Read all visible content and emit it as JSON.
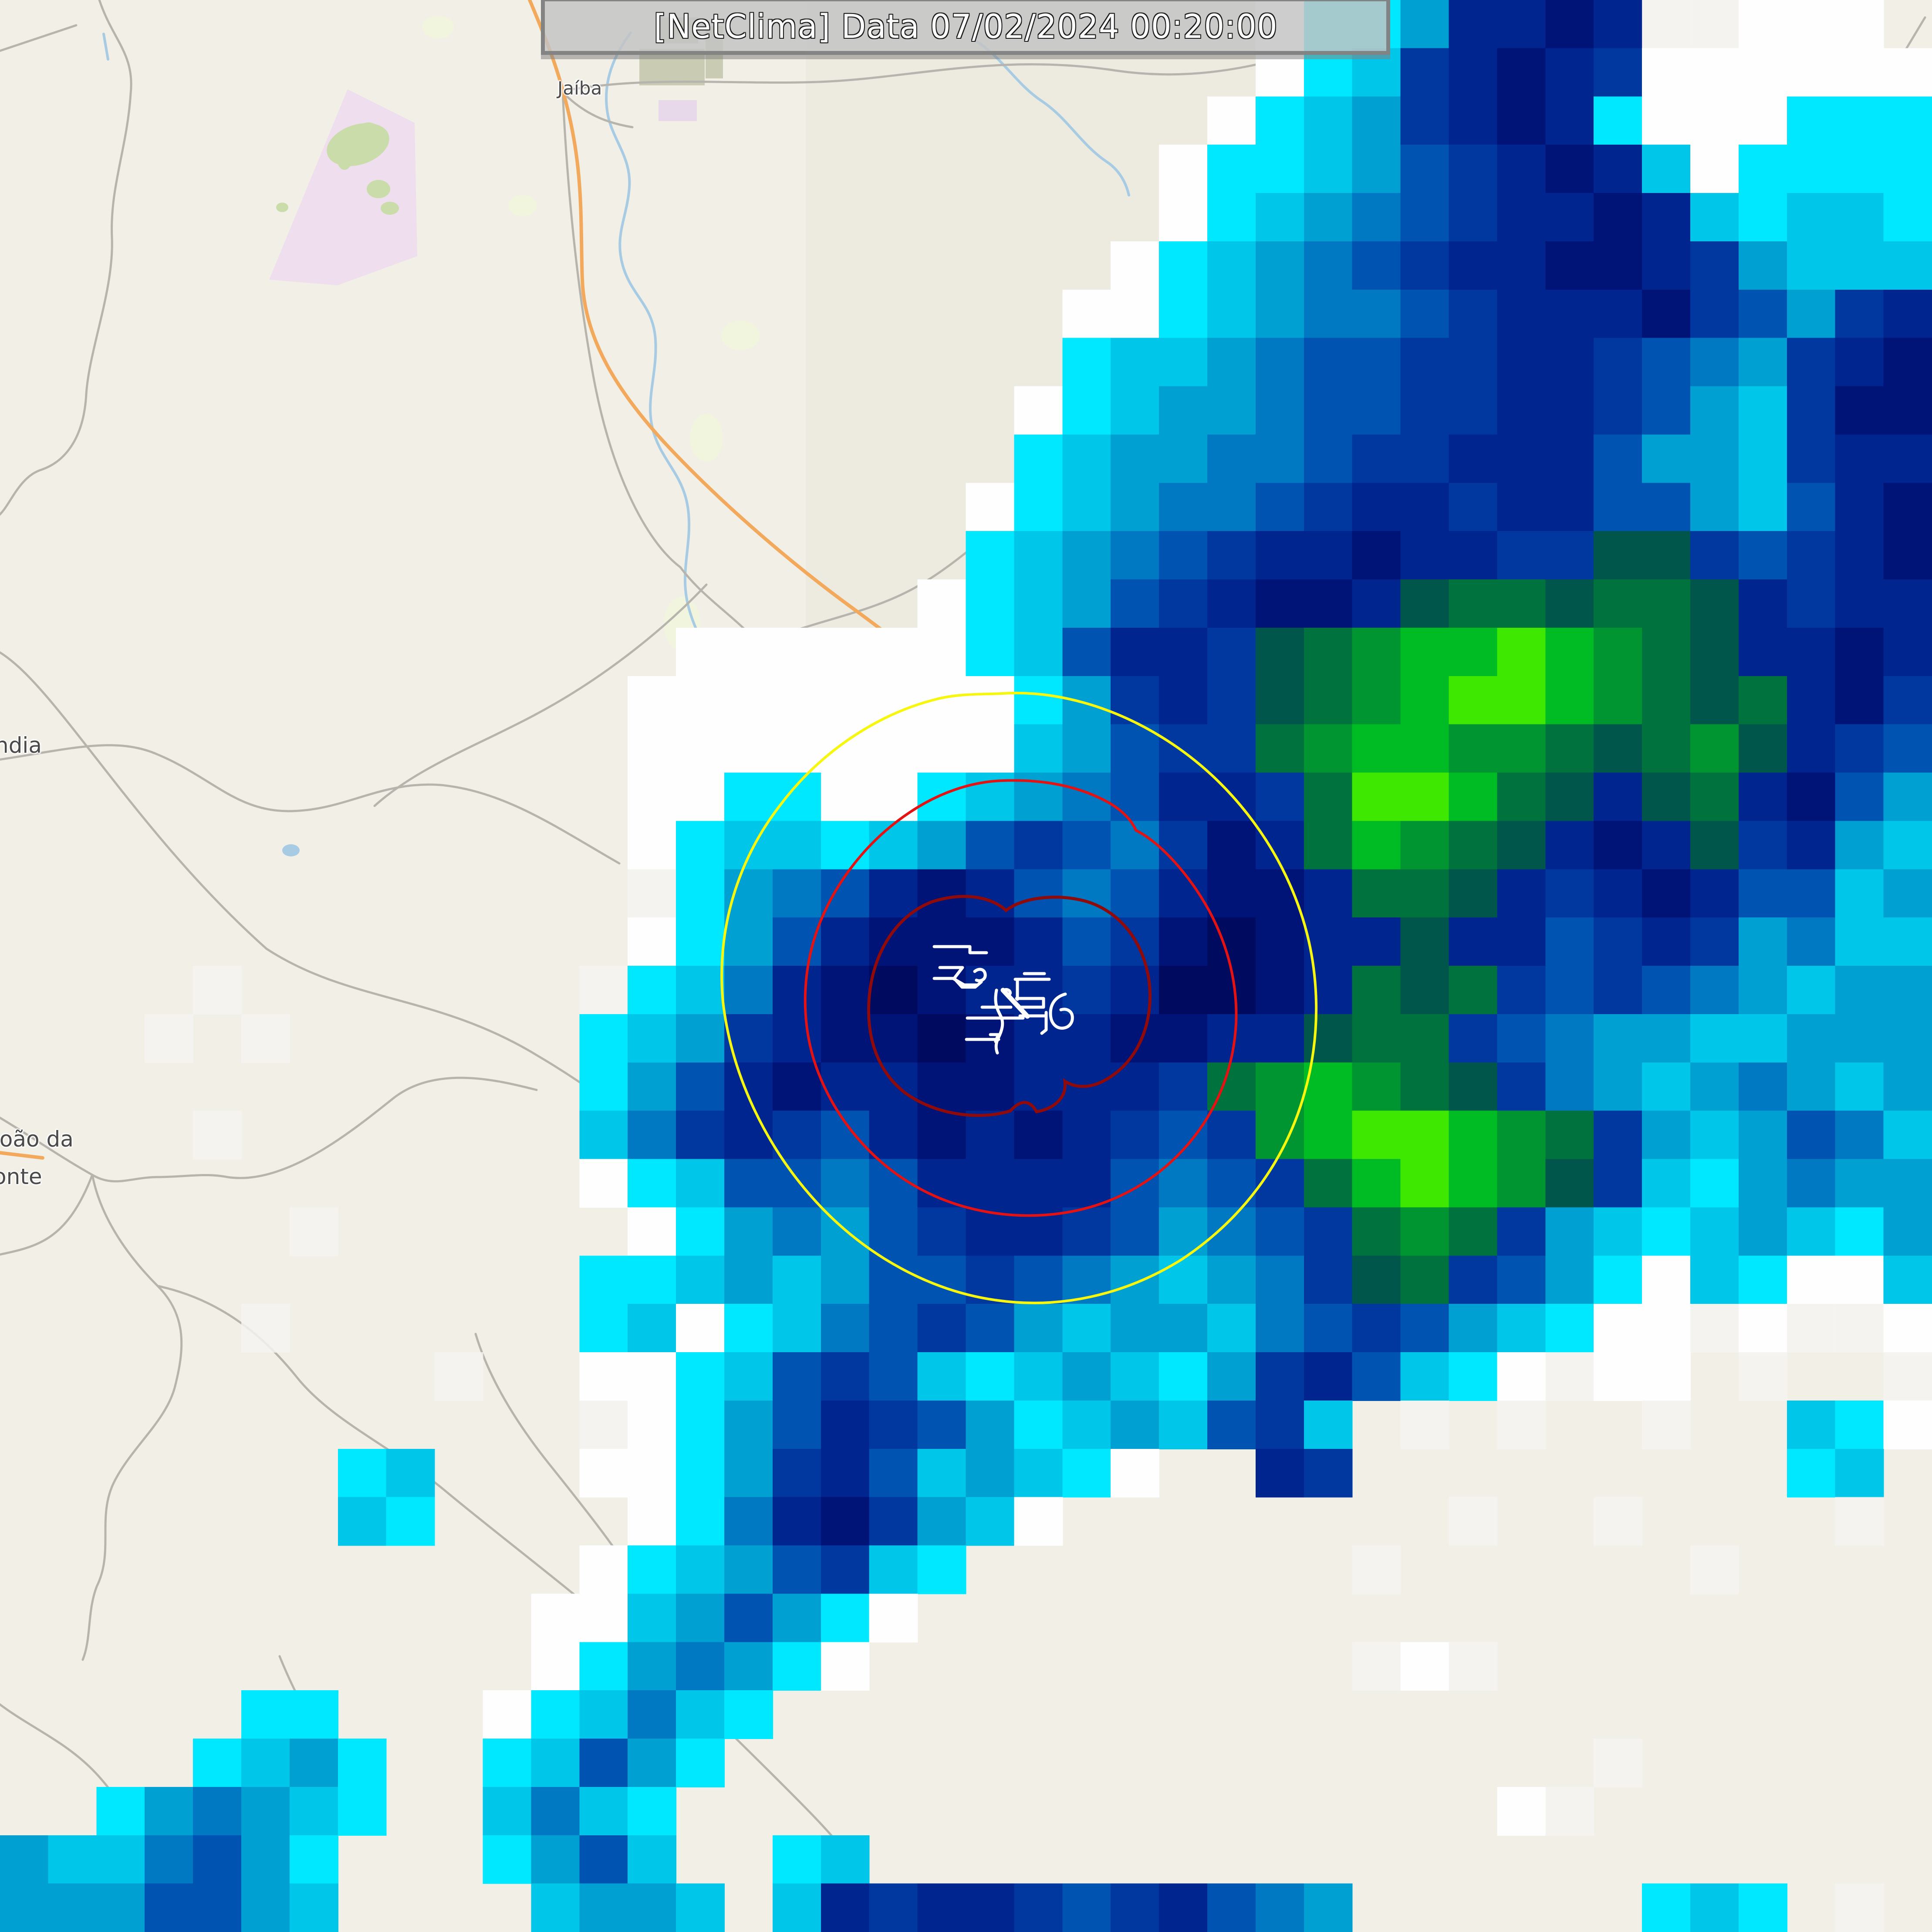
{
  "title_bar": {
    "text": "[NetClima] Data 07/02/2024 00:20:00"
  },
  "map": {
    "labels": [
      {
        "id": "jaiba",
        "text": "Jaíba"
      },
      {
        "id": "verdelandia-clipped",
        "text": "ndia"
      },
      {
        "id": "sao-joao-da-ponte-line1",
        "text": "João da"
      },
      {
        "id": "sao-joao-da-ponte-line2",
        "text": "onte"
      }
    ],
    "colors": {
      "land": "#f2efe7",
      "land_shade": "#eae6dc",
      "road_minor": "#b7b4ae",
      "road_primary": "#f2a95c",
      "water": "#a6cbe2",
      "reserve": "#efdfee",
      "vegetation": "#cadcaa",
      "pale_green": "#f2f5dd",
      "scrub": "#c9cbb2",
      "purple_patch": "#e7d9ea",
      "label_text": "#4a4a4a"
    }
  },
  "radar": {
    "grid_cols": 40,
    "grid_rows": 40,
    "palette": {
      "f": "#f4f3f0",
      "w": "#fefefe",
      "c": "#00e8ff",
      "d": "#00c6ea",
      "s": "#00a0d2",
      "a": "#0078c2",
      "b": "#0053b0",
      "n": "#00389f",
      "N": "#00258e",
      "D": "#001478",
      "K": "#000b60",
      "t": "#00564a",
      "g": "#00723e",
      "G": "#009530",
      "E": "#00bc24",
      "L": "#3fe800"
    },
    "grid": [
      "..........................wccsNNDNffwww.",
      "..........................wcdnNDNnwwwwww",
      ".........................wcdsnNDNcwwwccc",
      "........................wccdsbnNDNdwcccc",
      "........................wcdsabnNNDNdcddc",
      ".......................wcdsabnNNDDNnsddd",
      "......................wwcdsaabnNNNDnbsnN",
      "......................cddsabbnnNNnbasnND",
      ".....................wcdssabbnnNNnbsdnDD",
      ".....................cdssaabnnNNNbssdnNN",
      "....................wcdsaabnNNnNNbbsdbND",
      "....................cdsabnNNDNNnnttnbnND",
      "...................wcdsbnNDDNtggtggtNnNN",
      "..............wwwwwwcdbNNntgGEELEGgtNNDN",
      ".............wwwwwwwwcsnNntgGELLEGgtgNDn",
      ".............wwwwwwwwdsbnngGEEGGgtgGtNnb",
      ".............wwccwwcdsabNNngLLEgtNtgNDbs",
      ".............wcddcdsbnbanDNgEGgtNDNtnNsd",
      ".............fcsabNDNbabNDDNggtNnNDNbbds",
      ".............wcsbNDDDNbnDKDNNtNNbnNnsadd",
      "....f.......fcdaNDKDNNnNKKDNgtgnbnbasdss",
      "...f.f......cdsnNDDKDNNDDNNtggnbassddsss",
      "............csbNDNNDDNNNngGEGgtnasdsasds",
      "....f.......danNnbNDNDNnbnGELLEGgnsdsbad",
      "............wcdbbabNNNNbabngELEGtndcsass",
      "......f......wcsasbnNNnbsabngGgnsdcdsdcs",
      "............ccdsdsbbnbasdsantgnbscwdcwwd",
      ".....f......cdwcdabnbsdssdabnbsdcwwfwffw",
      ".........f..wwcdbnbdcdsdcsnNbdcwfww.f..f",
      "............fwcsbNnbscdsdbnd.f.f..f..dcw",
      ".......cd...wwcsnNbdsdcw..Nn.........cd.",
      ".......dc....wcaNDnsdw........f..f....f.",
      "............wcdsbndc........f......f....",
      "...........wwdsbscw.....................",
      "...........wcsascw..........fwf.........",
      ".....cc...wcdadc........................",
      "....cdsc..cdbsc..................f......",
      "..csasdc..dadc.................wf.......",
      "sddabsc...csbd..cd......................",
      "sssbbsd....dssd.dNnNNnbnNbas......cdc.f."
    ]
  },
  "contours": {
    "outer": {
      "color": "#f6f60e"
    },
    "middle": {
      "color": "#e41212"
    },
    "inner": {
      "color": "#8f0a0a"
    }
  },
  "lightning": {
    "color": "#ffffff"
  }
}
